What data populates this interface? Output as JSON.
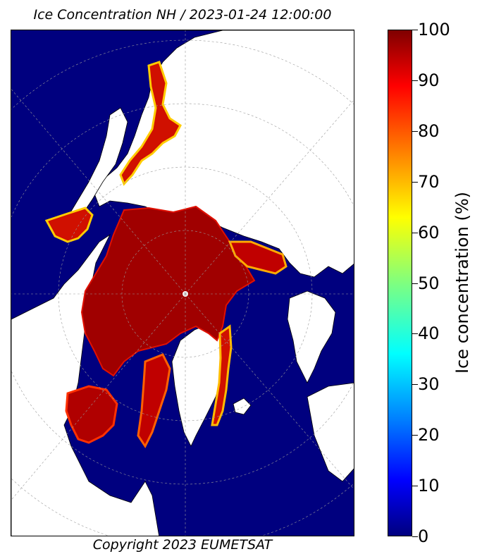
{
  "title": "Ice Concentration NH / 2023-01-24 12:00:00",
  "copyright": "Copyright 2023 EUMETSAT",
  "colorbar": {
    "label": "Ice concentration (%)",
    "ticks": [
      "0",
      "10",
      "20",
      "30",
      "40",
      "50",
      "60",
      "70",
      "80",
      "90",
      "100"
    ],
    "colormap": "jet",
    "colors": {
      "0": "#00007f",
      "10": "#0000ff",
      "20": "#007fff",
      "30": "#00ffff",
      "50": "#7fff7f",
      "60": "#ffff00",
      "80": "#ff7f00",
      "90": "#ff0000",
      "100": "#7f0000"
    }
  },
  "map": {
    "projection": "polar stereographic, northern hemisphere",
    "ocean_color": "#00007f",
    "land_color": "#ffffff",
    "ice_core_color": "#a00000",
    "graticule": "dashed grey"
  }
}
